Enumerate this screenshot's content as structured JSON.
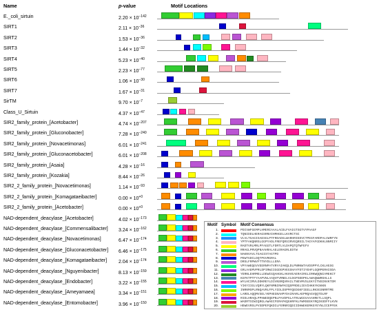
{
  "headers": {
    "name": "Name",
    "pvalue_italic": "p",
    "pvalue_rest": "-value",
    "motif_locations": "Motif Locations"
  },
  "motif_colors": {
    "1": "#ff0000",
    "2": "#00ffff",
    "3": "#1e90ff",
    "4": "#ffb6c1",
    "5": "#ffff00",
    "6": "#32cd32",
    "7": "#ff8c00",
    "8": "#0000cd",
    "9": "#ba55d3",
    "10": "#00ff7f",
    "11": "#8a2be2",
    "12": "#228b22",
    "13": "#4682b4",
    "14": "#ff1493",
    "15": "#00bfff",
    "16": "#7cfc00",
    "17": "#ffa500",
    "18": "#9400d3",
    "19": "#dc143c",
    "20": "#9acd32"
  },
  "rows": [
    {
      "name": "E._coli_sirtuin",
      "pmant": "2.20",
      "pexp": "−142",
      "len": 0.55,
      "motifs": [
        [
          "6",
          0.02,
          0.08
        ],
        [
          "5",
          0.1,
          0.06
        ],
        [
          "2",
          0.165,
          0.05
        ],
        [
          "11",
          0.215,
          0.05
        ],
        [
          "14",
          0.265,
          0.05
        ],
        [
          "9",
          0.315,
          0.05
        ],
        [
          "7",
          0.37,
          0.05
        ]
      ]
    },
    {
      "name": "SIRT1",
      "pmant": "2.11",
      "pexp": "−36",
      "len": 0.86,
      "motifs": [
        [
          "8",
          0.28,
          0.03
        ],
        [
          "19",
          0.37,
          0.03
        ],
        [
          "10",
          0.68,
          0.06
        ]
      ]
    },
    {
      "name": "SIRT2",
      "pmant": "1.53",
      "pexp": "−36",
      "len": 0.75,
      "motifs": [
        [
          "8",
          0.085,
          0.025
        ],
        [
          "6",
          0.16,
          0.035
        ],
        [
          "15",
          0.205,
          0.03
        ],
        [
          "4",
          0.29,
          0.04
        ],
        [
          "9",
          0.34,
          0.04
        ],
        [
          "4",
          0.4,
          0.05
        ],
        [
          "4",
          0.47,
          0.05
        ]
      ]
    },
    {
      "name": "SIRT3",
      "pmant": "1.44",
      "pexp": "−32",
      "len": 0.63,
      "motifs": [
        [
          "8",
          0.12,
          0.03
        ],
        [
          "2",
          0.16,
          0.04
        ],
        [
          "16",
          0.205,
          0.04
        ],
        [
          "14",
          0.29,
          0.04
        ],
        [
          "4",
          0.35,
          0.05
        ]
      ]
    },
    {
      "name": "SIRT4",
      "pmant": "5.23",
      "pexp": "−40",
      "len": 0.58,
      "motifs": [
        [
          "6",
          0.13,
          0.045
        ],
        [
          "2",
          0.18,
          0.04
        ],
        [
          "5",
          0.23,
          0.045
        ],
        [
          "9",
          0.31,
          0.04
        ],
        [
          "7",
          0.36,
          0.04
        ],
        [
          "12",
          0.405,
          0.03
        ],
        [
          "4",
          0.45,
          0.05
        ]
      ]
    },
    {
      "name": "SIRT5",
      "pmant": "2.23",
      "pexp": "−77",
      "len": 0.56,
      "motifs": [
        [
          "6",
          0.035,
          0.08
        ],
        [
          "12",
          0.12,
          0.05
        ],
        [
          "12",
          0.18,
          0.05
        ],
        [
          "4",
          0.28,
          0.06
        ],
        [
          "4",
          0.35,
          0.05
        ]
      ]
    },
    {
      "name": "SIRT6",
      "pmant": "1.06",
      "pexp": "−30",
      "len": 0.55,
      "motifs": [
        [
          "8",
          0.045,
          0.03
        ],
        [
          "7",
          0.2,
          0.035
        ]
      ]
    },
    {
      "name": "SIRT7",
      "pmant": "1.67",
      "pexp": "−31",
      "len": 0.6,
      "motifs": [
        [
          "8",
          0.075,
          0.03
        ],
        [
          "19",
          0.19,
          0.035
        ]
      ]
    },
    {
      "name": "SirTM",
      "pmant": "9.70",
      "pexp": "−7",
      "len": 0.3,
      "motifs": [
        [
          "20",
          0.05,
          0.04
        ]
      ]
    },
    {
      "name": "Class_U_Sirtuin",
      "pmant": "4.37",
      "pexp": "−47",
      "len": 0.28,
      "motifs": [
        [
          "8",
          0.025,
          0.03
        ],
        [
          "2",
          0.06,
          0.03
        ],
        [
          "14",
          0.1,
          0.03
        ],
        [
          "4",
          0.14,
          0.03
        ]
      ]
    },
    {
      "name": "SIR2_family_protein_[Acetobacter]",
      "pmant": "4.74",
      "pexp": "−207",
      "len": 0.82,
      "motifs": [
        [
          "6",
          0.03,
          0.06
        ],
        [
          "7",
          0.14,
          0.06
        ],
        [
          "5",
          0.23,
          0.06
        ],
        [
          "9",
          0.33,
          0.06
        ],
        [
          "5",
          0.42,
          0.06
        ],
        [
          "18",
          0.51,
          0.05
        ],
        [
          "14",
          0.62,
          0.06
        ],
        [
          "13",
          0.71,
          0.05
        ],
        [
          "4",
          0.78,
          0.04
        ]
      ]
    },
    {
      "name": "SIR2_family_protein_[Gluconobacter]",
      "pmant": "7.28",
      "pexp": "−240",
      "len": 0.82,
      "motifs": [
        [
          "6",
          0.03,
          0.06
        ],
        [
          "7",
          0.13,
          0.06
        ],
        [
          "5",
          0.22,
          0.06
        ],
        [
          "9",
          0.31,
          0.06
        ],
        [
          "8",
          0.4,
          0.05
        ],
        [
          "18",
          0.49,
          0.05
        ],
        [
          "14",
          0.58,
          0.06
        ],
        [
          "5",
          0.67,
          0.06
        ],
        [
          "4",
          0.76,
          0.04
        ]
      ]
    },
    {
      "name": "SIR2_family_protein_[Novacetimonas]",
      "pmant": "6.01",
      "pexp": "−241",
      "len": 0.82,
      "motifs": [
        [
          "10",
          0.04,
          0.09
        ],
        [
          "7",
          0.17,
          0.06
        ],
        [
          "5",
          0.27,
          0.06
        ],
        [
          "9",
          0.36,
          0.06
        ],
        [
          "5",
          0.45,
          0.06
        ],
        [
          "18",
          0.54,
          0.05
        ],
        [
          "14",
          0.63,
          0.06
        ],
        [
          "4",
          0.75,
          0.05
        ]
      ]
    },
    {
      "name": "SIR2_family_protein_[Gluconacetobacter]",
      "pmant": "6.01",
      "pexp": "−208",
      "len": 0.82,
      "motifs": [
        [
          "8",
          0.02,
          0.03
        ],
        [
          "7",
          0.1,
          0.06
        ],
        [
          "5",
          0.19,
          0.06
        ],
        [
          "9",
          0.28,
          0.06
        ],
        [
          "5",
          0.37,
          0.06
        ],
        [
          "18",
          0.46,
          0.05
        ],
        [
          "14",
          0.55,
          0.06
        ],
        [
          "5",
          0.64,
          0.06
        ],
        [
          "4",
          0.75,
          0.05
        ]
      ]
    },
    {
      "name": "SIR2_family_protein_[Asaia]",
      "pmant": "4.28",
      "pexp": "−16",
      "len": 0.44,
      "motifs": [
        [
          "8",
          0.02,
          0.03
        ],
        [
          "7",
          0.08,
          0.03
        ],
        [
          "9",
          0.15,
          0.06
        ]
      ]
    },
    {
      "name": "SIR2_family_protein_[Kozakia]",
      "pmant": "8.44",
      "pexp": "−26",
      "len": 0.3,
      "motifs": [
        [
          "8",
          0.03,
          0.03
        ],
        [
          "18",
          0.08,
          0.03
        ],
        [
          "5",
          0.14,
          0.035
        ]
      ]
    },
    {
      "name": "SIR2_2_family_protein_[Novacetimonas]",
      "pmant": "1.14",
      "pexp": "−93",
      "len": 0.86,
      "motifs": [
        [
          "8",
          0.02,
          0.03
        ],
        [
          "7",
          0.06,
          0.035
        ],
        [
          "7",
          0.1,
          0.035
        ],
        [
          "18",
          0.14,
          0.03
        ],
        [
          "4",
          0.18,
          0.03
        ],
        [
          "5",
          0.26,
          0.05
        ],
        [
          "5",
          0.32,
          0.05
        ],
        [
          "16",
          0.38,
          0.04
        ]
      ]
    },
    {
      "name": "SIR2_2_family_protein_[Komagataeibacter]",
      "pmant": "0.00",
      "pexp": "+0",
      "len": 0.85,
      "motifs": [
        [
          "7",
          0.02,
          0.04
        ],
        [
          "8",
          0.08,
          0.03
        ],
        [
          "6",
          0.13,
          0.05
        ],
        [
          "9",
          0.2,
          0.05
        ],
        [
          "5",
          0.29,
          0.06
        ],
        [
          "18",
          0.38,
          0.05
        ],
        [
          "16",
          0.45,
          0.04
        ],
        [
          "18",
          0.53,
          0.05
        ],
        [
          "18",
          0.61,
          0.05
        ],
        [
          "6",
          0.68,
          0.05
        ],
        [
          "4",
          0.76,
          0.04
        ]
      ]
    },
    {
      "name": "SIR2_2_family_protein_[Acetobacter]",
      "pmant": "0.00",
      "pexp": "+0",
      "len": 0.85,
      "motifs": [
        [
          "7",
          0.02,
          0.04
        ],
        [
          "8",
          0.08,
          0.03
        ],
        [
          "10",
          0.13,
          0.05
        ],
        [
          "9",
          0.21,
          0.05
        ],
        [
          "5",
          0.29,
          0.06
        ],
        [
          "18",
          0.38,
          0.05
        ],
        [
          "18",
          0.45,
          0.04
        ],
        [
          "18",
          0.53,
          0.05
        ],
        [
          "7",
          0.61,
          0.05
        ],
        [
          "5",
          0.68,
          0.05
        ],
        [
          "4",
          0.76,
          0.04
        ]
      ]
    },
    {
      "name": "NAD-dependent_deacylase_[Acetobacter]",
      "pmant": "4.02",
      "pexp": "−173",
      "len": 0.18,
      "motifs": [
        [
          "6",
          0.005,
          0.04
        ],
        [
          "5",
          0.045,
          0.04
        ],
        [
          "2",
          0.085,
          0.03
        ],
        [
          "14",
          0.115,
          0.025
        ],
        [
          "19",
          0.14,
          0.02
        ],
        [
          "7",
          0.16,
          0.02
        ]
      ]
    },
    {
      "name": "NAD-dependent_deacylase_[Commensalibacter]",
      "pmant": "3.24",
      "pexp": "−162",
      "len": 0.18,
      "motifs": [
        [
          "6",
          0.005,
          0.04
        ],
        [
          "5",
          0.045,
          0.04
        ],
        [
          "2",
          0.085,
          0.03
        ],
        [
          "14",
          0.115,
          0.025
        ],
        [
          "19",
          0.14,
          0.02
        ],
        [
          "7",
          0.16,
          0.02
        ]
      ]
    },
    {
      "name": "NAD-dependent_deacylase_[Novacetimonas]",
      "pmant": "6.47",
      "pexp": "−174",
      "len": 0.18,
      "motifs": [
        [
          "6",
          0.005,
          0.04
        ],
        [
          "5",
          0.045,
          0.04
        ],
        [
          "2",
          0.085,
          0.03
        ],
        [
          "14",
          0.115,
          0.025
        ],
        [
          "19",
          0.14,
          0.02
        ],
        [
          "7",
          0.16,
          0.02
        ]
      ]
    },
    {
      "name": "NAD-dependent_deacylase_[Gluconacetobacter]",
      "pmant": "6.46",
      "pexp": "−175",
      "len": 0.18,
      "motifs": [
        [
          "6",
          0.005,
          0.04
        ],
        [
          "5",
          0.045,
          0.04
        ],
        [
          "2",
          0.085,
          0.03
        ],
        [
          "14",
          0.115,
          0.025
        ],
        [
          "19",
          0.14,
          0.02
        ],
        [
          "7",
          0.16,
          0.02
        ]
      ]
    },
    {
      "name": "NAD-dependent_deacylase_[Komagataeibacter]",
      "pmant": "2.04",
      "pexp": "−174",
      "len": 0.18,
      "motifs": [
        [
          "6",
          0.005,
          0.04
        ],
        [
          "5",
          0.045,
          0.04
        ],
        [
          "2",
          0.085,
          0.03
        ],
        [
          "14",
          0.115,
          0.025
        ],
        [
          "19",
          0.14,
          0.02
        ],
        [
          "7",
          0.16,
          0.02
        ]
      ]
    },
    {
      "name": "NAD-dependent_deacylase_[Nguyenibacter]",
      "pmant": "8.13",
      "pexp": "−159",
      "len": 0.18,
      "motifs": [
        [
          "6",
          0.005,
          0.04
        ],
        [
          "5",
          0.045,
          0.04
        ],
        [
          "2",
          0.085,
          0.03
        ],
        [
          "14",
          0.115,
          0.025
        ],
        [
          "19",
          0.14,
          0.02
        ],
        [
          "7",
          0.16,
          0.02
        ]
      ]
    },
    {
      "name": "NAD-dependent_deacylase_[Endobacter]",
      "pmant": "3.22",
      "pexp": "−155",
      "len": 0.18,
      "motifs": [
        [
          "6",
          0.005,
          0.04
        ],
        [
          "5",
          0.045,
          0.04
        ],
        [
          "2",
          0.085,
          0.03
        ],
        [
          "14",
          0.115,
          0.025
        ],
        [
          "19",
          0.14,
          0.02
        ],
        [
          "7",
          0.16,
          0.02
        ]
      ]
    },
    {
      "name": "NAD-dependent_deacylase_[Ameyamaea]",
      "pmant": "3.34",
      "pexp": "−151",
      "len": 0.18,
      "motifs": [
        [
          "6",
          0.005,
          0.04
        ],
        [
          "5",
          0.045,
          0.04
        ],
        [
          "2",
          0.085,
          0.03
        ],
        [
          "14",
          0.115,
          0.025
        ],
        [
          "19",
          0.14,
          0.02
        ],
        [
          "7",
          0.16,
          0.02
        ]
      ]
    },
    {
      "name": "NAD-dependent_deacylase_[Entomobacter]",
      "pmant": "3.96",
      "pexp": "−150",
      "len": 0.18,
      "motifs": [
        [
          "6",
          0.005,
          0.04
        ],
        [
          "5",
          0.045,
          0.04
        ],
        [
          "2",
          0.085,
          0.03
        ],
        [
          "14",
          0.115,
          0.025
        ],
        [
          "19",
          0.14,
          0.02
        ],
        [
          "7",
          0.16,
          0.02
        ]
      ]
    }
  ],
  "legend": {
    "headers": {
      "motif": "Motif",
      "symbol": "Symbol",
      "consensus": "Motif Consensus"
    },
    "items": [
      {
        "num": "1.",
        "color": "1",
        "consensus": "PDIVWFGEMPLHMERIAAALACDLFVAIGTSGTVYPAAGF"
      },
      {
        "num": "2.",
        "color": "2",
        "consensus": "TQNIDDLHERAGSRNVIHMHGELLKVRCTSC"
      },
      {
        "num": "3.",
        "color": "3",
        "consensus": "VLVLTGAGISAESGLPTFRDADGLWARHRIEDVCTPEGFARDPALVWRFYN"
      },
      {
        "num": "4.",
        "color": "4",
        "consensus": "YPTFAKQNRSLGGPYADLFREFQRSIRVEQRSILTAGYAFGDKHLNNMIIY"
      },
      {
        "num": "5.",
        "color": "5",
        "consensus": "RADTVRLMRLPFAGGTLFDRTLVLDAPQTQTWFEFV"
      },
      {
        "num": "6.",
        "color": "6",
        "consensus": "RRAGLPRVQPNAAHRALAELERAGRLEDTW"
      },
      {
        "num": "7.",
        "color": "7",
        "consensus": "NAKNVAVLTGAGISTAGTPD"
      },
      {
        "num": "8.",
        "color": "8",
        "consensus": "PEWTGDCLDQTPGVRGRAL"
      },
      {
        "num": "9.",
        "color": "9",
        "consensus": "DRSLFRPWVFTTNYDLLLERA"
      },
      {
        "num": "10.",
        "color": "10",
        "consensus": "VPYAWEQGVVEERNPATVRYAIAKQLDLPNRKWTAVDSPPYLCKLHGSG"
      },
      {
        "num": "11.",
        "color": "11",
        "consensus": "GRLAAEMVPRLDPIRWIIGGDGPVEGSHAYFDTIYEHFLGQRPERHISDA"
      },
      {
        "num": "12.",
        "color": "12",
        "consensus": "YERNLEHRMELLDEWIGQAHGKLAKHVEAERAIRGLIRKWQQNIAMEKCT"
      },
      {
        "num": "13.",
        "color": "13",
        "consensus": "KGFKTPTFYAAPVNLAAQVFVRNELVLDGPSDDPKLAWAQWWRGHLLG"
      },
      {
        "num": "14.",
        "color": "14",
        "consensus": "WYLHCIRVLDDKREYLDIVNSRQVRAILTNEVMVSLEKYITNSINVKTDM"
      },
      {
        "num": "15.",
        "color": "15",
        "consensus": "YIKYIIGLVQRYLQKFNMNIRWYKIQSPRDELIEVIHKKYKSKKN"
      },
      {
        "num": "16.",
        "color": "16",
        "consensus": "INRNMSPLRNQAVRLFPLYIDLDSPMYQEDGKFIEELLRKSGSNRRTME"
      },
      {
        "num": "17.",
        "color": "17",
        "consensus": "LARDLAQQMVSELYKPHEGNAHPYDAIRARLAEPRQAGVQQTDLRF"
      },
      {
        "num": "18.",
        "color": "18",
        "consensus": "RIDLHRAQLPPHWEDQEPNLPAVDPGLATRLWGGVAAAHRETLLSQPL"
      },
      {
        "num": "19.",
        "color": "19",
        "consensus": "WADRTSIWIQRGLAWAECFERAFKQGHRFKLFWMSEEKYRQIKSDFFLKVN"
      },
      {
        "num": "20.",
        "color": "20",
        "consensus": "HEWEVRSLPVSDPEFQKDILFERNRIQDIIDHWEKERKGYEYNLICEPFEK"
      }
    ]
  }
}
